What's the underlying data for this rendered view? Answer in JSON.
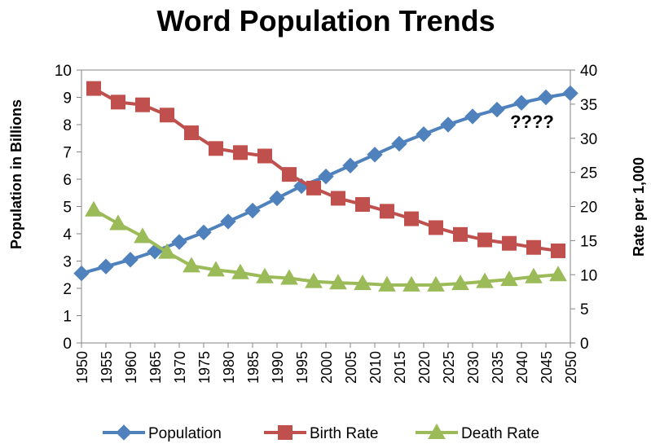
{
  "chart_data": {
    "type": "line",
    "title": "Word Population Trends",
    "y_left_label": "Population in Billions",
    "y_right_label": "Rate per 1,000",
    "y_left_range": [
      0,
      10
    ],
    "y_right_range": [
      0,
      40
    ],
    "y_left_ticks": [
      0,
      1,
      2,
      3,
      4,
      5,
      6,
      7,
      8,
      9,
      10
    ],
    "y_right_ticks": [
      0,
      5,
      10,
      15,
      20,
      25,
      30,
      35,
      40
    ],
    "x_range": [
      1950,
      2050
    ],
    "x_ticks": [
      1950,
      1955,
      1960,
      1965,
      1970,
      1975,
      1980,
      1985,
      1990,
      1995,
      2000,
      2005,
      2010,
      2015,
      2020,
      2025,
      2030,
      2035,
      2040,
      2045,
      2050
    ],
    "grid": false,
    "legend_position": "bottom",
    "annotation": "????",
    "series": [
      {
        "name": "Population",
        "axis": "left",
        "marker": "diamond",
        "color": "#4F81BD",
        "x": [
          1950,
          1955,
          1960,
          1965,
          1970,
          1975,
          1980,
          1985,
          1990,
          1995,
          2000,
          2005,
          2010,
          2015,
          2020,
          2025,
          2030,
          2035,
          2040,
          2045,
          2050
        ],
        "values": [
          2.55,
          2.8,
          3.05,
          3.35,
          3.7,
          4.05,
          4.45,
          4.85,
          5.3,
          5.75,
          6.1,
          6.5,
          6.9,
          7.3,
          7.65,
          8.0,
          8.3,
          8.55,
          8.8,
          9.0,
          9.15
        ]
      },
      {
        "name": "Birth Rate",
        "axis": "right",
        "marker": "square",
        "color": "#C0504D",
        "x": [
          1952.5,
          1957.5,
          1962.5,
          1967.5,
          1972.5,
          1977.5,
          1982.5,
          1987.5,
          1992.5,
          1997.5,
          2002.5,
          2007.5,
          2012.5,
          2017.5,
          2022.5,
          2027.5,
          2032.5,
          2037.5,
          2042.5,
          2047.5
        ],
        "values": [
          37.3,
          35.3,
          34.9,
          33.4,
          30.8,
          28.5,
          27.9,
          27.4,
          24.7,
          22.7,
          21.2,
          20.3,
          19.3,
          18.2,
          16.9,
          15.9,
          15.1,
          14.6,
          14.0,
          13.5
        ]
      },
      {
        "name": "Death Rate",
        "axis": "right",
        "marker": "triangle",
        "color": "#9BBB59",
        "x": [
          1952.5,
          1957.5,
          1962.5,
          1967.5,
          1972.5,
          1977.5,
          1982.5,
          1987.5,
          1992.5,
          1997.5,
          2002.5,
          2007.5,
          2012.5,
          2017.5,
          2022.5,
          2027.5,
          2032.5,
          2037.5,
          2042.5,
          2047.5
        ],
        "values": [
          19.5,
          17.5,
          15.6,
          13.3,
          11.3,
          10.7,
          10.3,
          9.7,
          9.5,
          9.0,
          8.8,
          8.7,
          8.5,
          8.5,
          8.5,
          8.7,
          9.0,
          9.3,
          9.7,
          10.0
        ]
      }
    ]
  }
}
